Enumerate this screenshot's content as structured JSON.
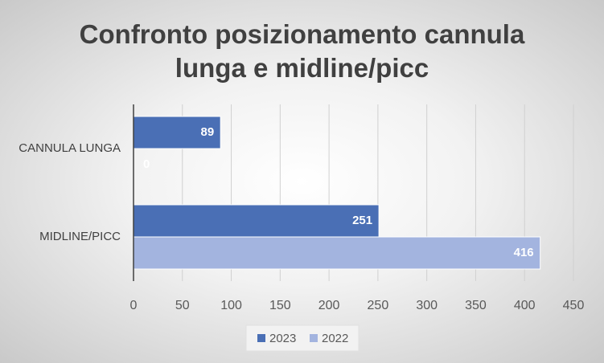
{
  "chart_data": {
    "type": "bar",
    "orientation": "horizontal",
    "title": "Confronto posizionamento cannula lunga e midline/picc",
    "categories": [
      "CANNULA LUNGA",
      "MIDLINE/PICC"
    ],
    "series": [
      {
        "name": "2023",
        "color": "#4a6fb5",
        "values": [
          89,
          251
        ]
      },
      {
        "name": "2022",
        "color": "#a3b4df",
        "values": [
          0,
          416
        ]
      }
    ],
    "xlim": [
      0,
      450
    ],
    "xticks": [
      0,
      50,
      100,
      150,
      200,
      250,
      300,
      350,
      400,
      450
    ],
    "grid": true,
    "legend": "bottom"
  }
}
